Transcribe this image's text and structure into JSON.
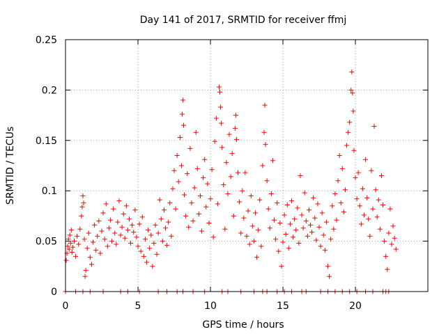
{
  "chart_data": {
    "type": "scatter",
    "title": "Day 141 of 2017, SRMTID for receiver ffmj",
    "xlabel": "GPS time / hours",
    "ylabel": "SRMTID / TECUs",
    "xlim": [
      0,
      25
    ],
    "ylim": [
      0,
      0.25
    ],
    "x_ticks": [
      0,
      5,
      10,
      15,
      20
    ],
    "x_tick_labels": [
      "0",
      "5",
      "10",
      "15",
      "20"
    ],
    "y_ticks": [
      0,
      0.05,
      0.1,
      0.15,
      0.2,
      0.25
    ],
    "y_tick_labels": [
      "0",
      "0.05",
      "0.1",
      "0.15",
      "0.2",
      "0.25"
    ],
    "grid": true,
    "marker": "+",
    "color": "#ff0000",
    "zero_marks_x": [
      0.0,
      0.7,
      1.2,
      1.7,
      2.6,
      3.8,
      4.3,
      5.1,
      6.4,
      7.0,
      7.7,
      8.1,
      8.8,
      9.6,
      10.8,
      11.2,
      12.1,
      13.0,
      13.6,
      13.9,
      14.6,
      15.1,
      15.6,
      16.3,
      16.6,
      17.6,
      18.1,
      18.6,
      19.1,
      19.6,
      20.1,
      20.7,
      21.2,
      21.9,
      22.1,
      22.3
    ],
    "series": [
      {
        "name": "SRMTID",
        "points": [
          [
            0.05,
            0.031
          ],
          [
            0.1,
            0.038
          ],
          [
            0.15,
            0.045
          ],
          [
            0.2,
            0.052
          ],
          [
            0.25,
            0.042
          ],
          [
            0.3,
            0.056
          ],
          [
            0.35,
            0.048
          ],
          [
            0.4,
            0.061
          ],
          [
            0.45,
            0.039
          ],
          [
            0.5,
            0.044
          ],
          [
            0.6,
            0.05
          ],
          [
            0.7,
            0.035
          ],
          [
            0.8,
            0.055
          ],
          [
            0.9,
            0.047
          ],
          [
            1.0,
            0.062
          ],
          [
            1.1,
            0.075
          ],
          [
            1.15,
            0.084
          ],
          [
            1.2,
            0.095
          ],
          [
            1.25,
            0.088
          ],
          [
            1.3,
            0.052
          ],
          [
            1.35,
            0.015
          ],
          [
            1.4,
            0.021
          ],
          [
            1.5,
            0.043
          ],
          [
            1.6,
            0.058
          ],
          [
            1.7,
            0.034
          ],
          [
            1.8,
            0.027
          ],
          [
            1.9,
            0.049
          ],
          [
            2.0,
            0.066
          ],
          [
            2.1,
            0.041
          ],
          [
            2.2,
            0.055
          ],
          [
            2.3,
            0.07
          ],
          [
            2.4,
            0.038
          ],
          [
            2.5,
            0.06
          ],
          [
            2.6,
            0.078
          ],
          [
            2.7,
            0.052
          ],
          [
            2.8,
            0.087
          ],
          [
            2.9,
            0.045
          ],
          [
            3.0,
            0.063
          ],
          [
            3.1,
            0.071
          ],
          [
            3.2,
            0.05
          ],
          [
            3.3,
            0.082
          ],
          [
            3.4,
            0.058
          ],
          [
            3.5,
            0.047
          ],
          [
            3.6,
            0.069
          ],
          [
            3.7,
            0.09
          ],
          [
            3.8,
            0.056
          ],
          [
            3.9,
            0.064
          ],
          [
            4.0,
            0.077
          ],
          [
            4.1,
            0.053
          ],
          [
            4.2,
            0.085
          ],
          [
            4.3,
            0.061
          ],
          [
            4.4,
            0.072
          ],
          [
            4.5,
            0.048
          ],
          [
            4.6,
            0.066
          ],
          [
            4.7,
            0.059
          ],
          [
            4.8,
            0.081
          ],
          [
            4.9,
            0.054
          ],
          [
            5.0,
            0.045
          ],
          [
            5.1,
            0.067
          ],
          [
            5.2,
            0.04
          ],
          [
            5.3,
            0.074
          ],
          [
            5.4,
            0.035
          ],
          [
            5.5,
            0.052
          ],
          [
            5.6,
            0.029
          ],
          [
            5.7,
            0.061
          ],
          [
            5.8,
            0.043
          ],
          [
            5.9,
            0.056
          ],
          [
            6.0,
            0.025
          ],
          [
            6.1,
            0.048
          ],
          [
            6.2,
            0.066
          ],
          [
            6.3,
            0.037
          ],
          [
            6.4,
            0.058
          ],
          [
            6.5,
            0.091
          ],
          [
            6.6,
            0.072
          ],
          [
            6.7,
            0.05
          ],
          [
            6.8,
            0.081
          ],
          [
            6.9,
            0.063
          ],
          [
            7.0,
            0.046
          ],
          [
            7.1,
            0.069
          ],
          [
            7.2,
            0.088
          ],
          [
            7.3,
            0.055
          ],
          [
            7.4,
            0.102
          ],
          [
            7.5,
            0.12
          ],
          [
            7.6,
            0.082
          ],
          [
            7.7,
            0.135
          ],
          [
            7.8,
            0.109
          ],
          [
            7.9,
            0.153
          ],
          [
            8.0,
            0.125
          ],
          [
            8.05,
            0.176
          ],
          [
            8.1,
            0.19
          ],
          [
            8.15,
            0.165
          ],
          [
            8.2,
            0.096
          ],
          [
            8.3,
            0.075
          ],
          [
            8.4,
            0.117
          ],
          [
            8.5,
            0.064
          ],
          [
            8.6,
            0.142
          ],
          [
            8.7,
            0.088
          ],
          [
            8.8,
            0.07
          ],
          [
            8.9,
            0.103
          ],
          [
            9.0,
            0.158
          ],
          [
            9.1,
            0.122
          ],
          [
            9.2,
            0.077
          ],
          [
            9.3,
            0.095
          ],
          [
            9.4,
            0.06
          ],
          [
            9.5,
            0.113
          ],
          [
            9.6,
            0.131
          ],
          [
            9.7,
            0.084
          ],
          [
            9.8,
            0.107
          ],
          [
            9.9,
            0.068
          ],
          [
            10.0,
            0.092
          ],
          [
            10.1,
            0.121
          ],
          [
            10.2,
            0.054
          ],
          [
            10.3,
            0.149
          ],
          [
            10.4,
            0.172
          ],
          [
            10.5,
            0.087
          ],
          [
            10.6,
            0.203
          ],
          [
            10.65,
            0.198
          ],
          [
            10.7,
            0.183
          ],
          [
            10.75,
            0.167
          ],
          [
            10.8,
            0.143
          ],
          [
            10.9,
            0.106
          ],
          [
            11.0,
            0.062
          ],
          [
            11.1,
            0.128
          ],
          [
            11.2,
            0.097
          ],
          [
            11.3,
            0.156
          ],
          [
            11.4,
            0.114
          ],
          [
            11.5,
            0.137
          ],
          [
            11.6,
            0.075
          ],
          [
            11.7,
            0.162
          ],
          [
            11.75,
            0.175
          ],
          [
            11.8,
            0.151
          ],
          [
            11.9,
            0.118
          ],
          [
            12.0,
            0.089
          ],
          [
            12.1,
            0.058
          ],
          [
            12.2,
            0.1
          ],
          [
            12.3,
            0.073
          ],
          [
            12.4,
            0.118
          ],
          [
            12.5,
            0.055
          ],
          [
            12.6,
            0.08
          ],
          [
            12.7,
            0.047
          ],
          [
            12.8,
            0.095
          ],
          [
            12.9,
            0.065
          ],
          [
            13.0,
            0.05
          ],
          [
            13.1,
            0.078
          ],
          [
            13.2,
            0.034
          ],
          [
            13.3,
            0.061
          ],
          [
            13.4,
            0.091
          ],
          [
            13.5,
            0.045
          ],
          [
            13.6,
            0.125
          ],
          [
            13.7,
            0.158
          ],
          [
            13.75,
            0.185
          ],
          [
            13.8,
            0.146
          ],
          [
            13.9,
            0.11
          ],
          [
            14.0,
            0.082
          ],
          [
            14.1,
            0.063
          ],
          [
            14.2,
            0.097
          ],
          [
            14.3,
            0.13
          ],
          [
            14.4,
            0.071
          ],
          [
            14.5,
            0.052
          ],
          [
            14.6,
            0.088
          ],
          [
            14.7,
            0.04
          ],
          [
            14.8,
            0.068
          ],
          [
            14.9,
            0.025
          ],
          [
            15.0,
            0.049
          ],
          [
            15.1,
            0.076
          ],
          [
            15.2,
            0.057
          ],
          [
            15.3,
            0.086
          ],
          [
            15.4,
            0.043
          ],
          [
            15.5,
            0.067
          ],
          [
            15.6,
            0.09
          ],
          [
            15.7,
            0.054
          ],
          [
            15.8,
            0.072
          ],
          [
            15.9,
            0.061
          ],
          [
            16.0,
            0.083
          ],
          [
            16.1,
            0.048
          ],
          [
            16.2,
            0.115
          ],
          [
            16.3,
            0.076
          ],
          [
            16.4,
            0.063
          ],
          [
            16.5,
            0.098
          ],
          [
            16.6,
            0.07
          ],
          [
            16.7,
            0.055
          ],
          [
            16.8,
            0.081
          ],
          [
            16.9,
            0.066
          ],
          [
            17.0,
            0.059
          ],
          [
            17.1,
            0.093
          ],
          [
            17.2,
            0.073
          ],
          [
            17.3,
            0.051
          ],
          [
            17.4,
            0.087
          ],
          [
            17.5,
            0.064
          ],
          [
            17.6,
            0.045
          ],
          [
            17.7,
            0.078
          ],
          [
            17.8,
            0.056
          ],
          [
            17.9,
            0.041
          ],
          [
            18.0,
            0.069
          ],
          [
            18.1,
            0.025
          ],
          [
            18.2,
            0.015
          ],
          [
            18.3,
            0.052
          ],
          [
            18.4,
            0.085
          ],
          [
            18.5,
            0.062
          ],
          [
            18.6,
            0.097
          ],
          [
            18.7,
            0.071
          ],
          [
            18.8,
            0.11
          ],
          [
            18.9,
            0.135
          ],
          [
            19.0,
            0.088
          ],
          [
            19.1,
            0.122
          ],
          [
            19.2,
            0.079
          ],
          [
            19.3,
            0.101
          ],
          [
            19.4,
            0.145
          ],
          [
            19.5,
            0.158
          ],
          [
            19.6,
            0.168
          ],
          [
            19.7,
            0.2
          ],
          [
            19.75,
            0.218
          ],
          [
            19.8,
            0.197
          ],
          [
            19.85,
            0.179
          ],
          [
            19.9,
            0.14
          ],
          [
            20.0,
            0.113
          ],
          [
            20.1,
            0.092
          ],
          [
            20.2,
            0.118
          ],
          [
            20.3,
            0.085
          ],
          [
            20.4,
            0.067
          ],
          [
            20.5,
            0.102
          ],
          [
            20.6,
            0.076
          ],
          [
            20.7,
            0.131
          ],
          [
            20.8,
            0.093
          ],
          [
            20.9,
            0.072
          ],
          [
            21.0,
            0.055
          ],
          [
            21.1,
            0.12
          ],
          [
            21.2,
            0.082
          ],
          [
            21.3,
            0.164
          ],
          [
            21.4,
            0.101
          ],
          [
            21.5,
            0.074
          ],
          [
            21.6,
            0.091
          ],
          [
            21.7,
            0.062
          ],
          [
            21.8,
            0.115
          ],
          [
            21.9,
            0.086
          ],
          [
            22.0,
            0.05
          ],
          [
            22.1,
            0.035
          ],
          [
            22.2,
            0.022
          ],
          [
            22.3,
            0.058
          ],
          [
            22.4,
            0.082
          ],
          [
            22.5,
            0.047
          ],
          [
            22.6,
            0.065
          ],
          [
            22.7,
            0.053
          ],
          [
            22.8,
            0.042
          ]
        ]
      }
    ]
  }
}
